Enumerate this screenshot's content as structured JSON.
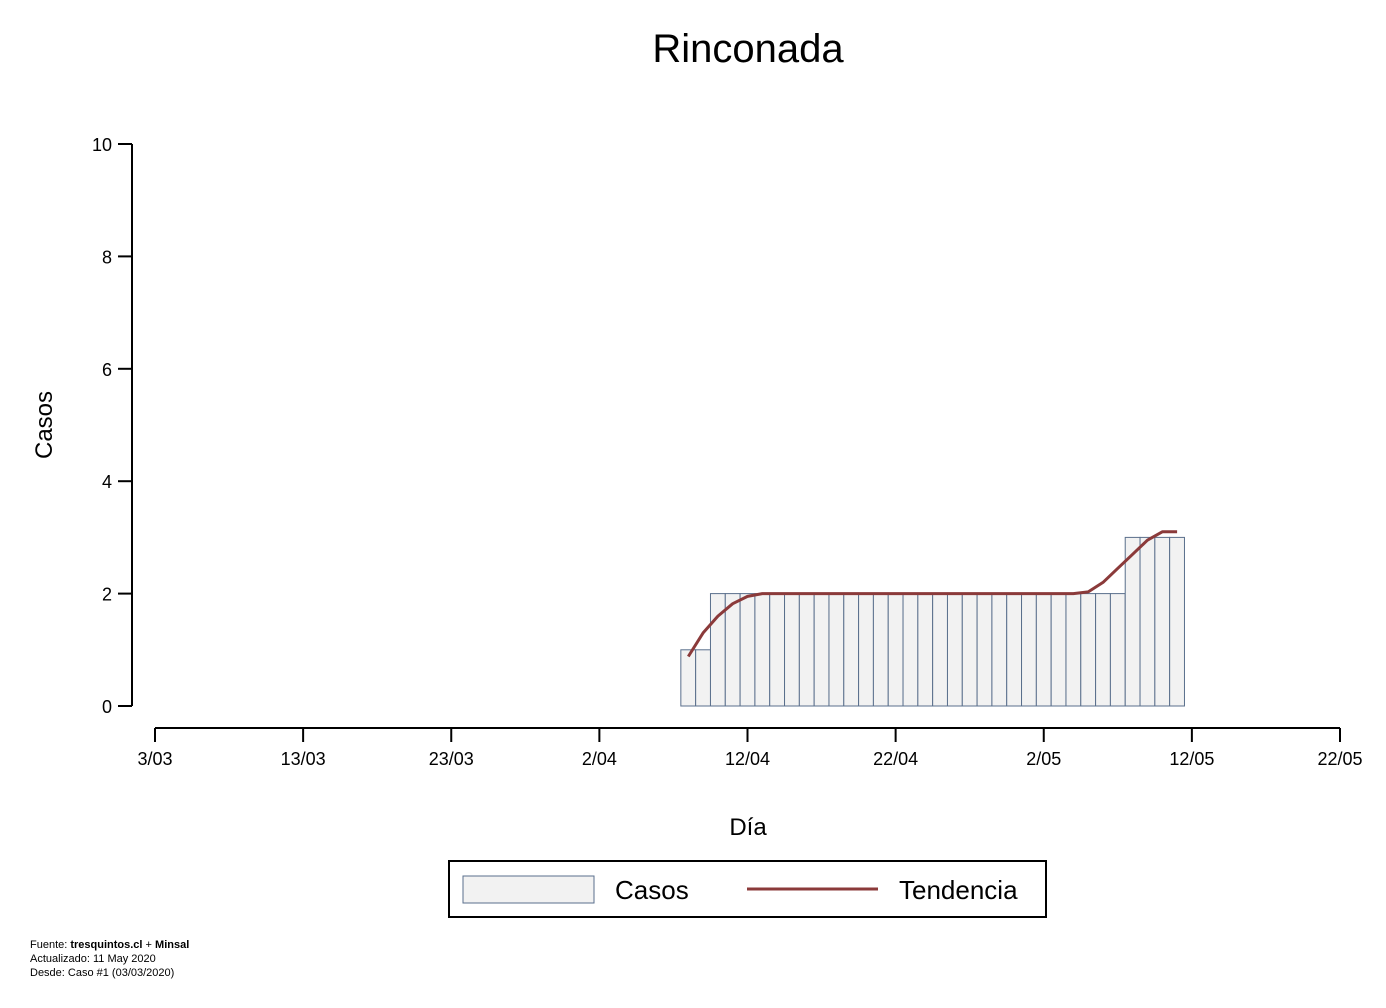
{
  "chart_data": {
    "type": "bar",
    "title": "Rinconada",
    "xlabel": "Día",
    "ylabel": "Casos",
    "ylim": [
      0,
      10
    ],
    "yticks": [
      0,
      2,
      4,
      6,
      8,
      10
    ],
    "xlim": [
      "2020-03-03",
      "2020-05-22"
    ],
    "xticks": [
      {
        "date": "2020-03-03",
        "label": "3/03"
      },
      {
        "date": "2020-03-13",
        "label": "13/03"
      },
      {
        "date": "2020-03-23",
        "label": "23/03"
      },
      {
        "date": "2020-04-02",
        "label": "2/04"
      },
      {
        "date": "2020-04-12",
        "label": "12/04"
      },
      {
        "date": "2020-04-22",
        "label": "22/04"
      },
      {
        "date": "2020-05-02",
        "label": "2/05"
      },
      {
        "date": "2020-05-12",
        "label": "12/05"
      },
      {
        "date": "2020-05-22",
        "label": "22/05"
      }
    ],
    "grid": false,
    "series": [
      {
        "name": "Casos",
        "type": "bar",
        "color": "#f2f2f2",
        "edge_color": "#5a6f8c",
        "x": [
          "2020-04-08",
          "2020-04-09",
          "2020-04-10",
          "2020-04-11",
          "2020-04-12",
          "2020-04-13",
          "2020-04-14",
          "2020-04-15",
          "2020-04-16",
          "2020-04-17",
          "2020-04-18",
          "2020-04-19",
          "2020-04-20",
          "2020-04-21",
          "2020-04-22",
          "2020-04-23",
          "2020-04-24",
          "2020-04-25",
          "2020-04-26",
          "2020-04-27",
          "2020-04-28",
          "2020-04-29",
          "2020-04-30",
          "2020-05-01",
          "2020-05-02",
          "2020-05-03",
          "2020-05-04",
          "2020-05-05",
          "2020-05-06",
          "2020-05-07",
          "2020-05-08",
          "2020-05-09",
          "2020-05-10",
          "2020-05-11"
        ],
        "values": [
          1,
          1,
          2,
          2,
          2,
          2,
          2,
          2,
          2,
          2,
          2,
          2,
          2,
          2,
          2,
          2,
          2,
          2,
          2,
          2,
          2,
          2,
          2,
          2,
          2,
          2,
          2,
          2,
          2,
          2,
          3,
          3,
          3,
          3
        ]
      },
      {
        "name": "Tendencia",
        "type": "line",
        "color": "#8b3a3a",
        "x": [
          "2020-04-08",
          "2020-04-09",
          "2020-04-10",
          "2020-04-11",
          "2020-04-12",
          "2020-04-13",
          "2020-04-14",
          "2020-04-15",
          "2020-04-16",
          "2020-04-17",
          "2020-04-18",
          "2020-04-19",
          "2020-04-20",
          "2020-04-21",
          "2020-04-22",
          "2020-04-23",
          "2020-04-24",
          "2020-04-25",
          "2020-04-26",
          "2020-04-27",
          "2020-04-28",
          "2020-04-29",
          "2020-04-30",
          "2020-05-01",
          "2020-05-02",
          "2020-05-03",
          "2020-05-04",
          "2020-05-05",
          "2020-05-06",
          "2020-05-07",
          "2020-05-08",
          "2020-05-09",
          "2020-05-10",
          "2020-05-11"
        ],
        "values": [
          0.88,
          1.3,
          1.6,
          1.82,
          1.95,
          2.0,
          2.0,
          2.0,
          2.0,
          2.0,
          2.0,
          2.0,
          2.0,
          2.0,
          2.0,
          2.0,
          2.0,
          2.0,
          2.0,
          2.0,
          2.0,
          2.0,
          2.0,
          2.0,
          2.0,
          2.0,
          2.0,
          2.03,
          2.2,
          2.45,
          2.7,
          2.95,
          3.1,
          3.1
        ]
      }
    ],
    "legend": {
      "placement": "bottom",
      "entries": [
        {
          "label": "Casos",
          "kind": "bar"
        },
        {
          "label": "Tendencia",
          "kind": "line"
        }
      ]
    }
  },
  "footer": {
    "source_prefix": "Fuente: ",
    "source_site": "tresquintos.cl",
    "source_sep": " + ",
    "source_org": "Minsal",
    "updated": "Actualizado: 11 May 2020",
    "since": "Desde: Caso #1  (03/03/2020)"
  }
}
